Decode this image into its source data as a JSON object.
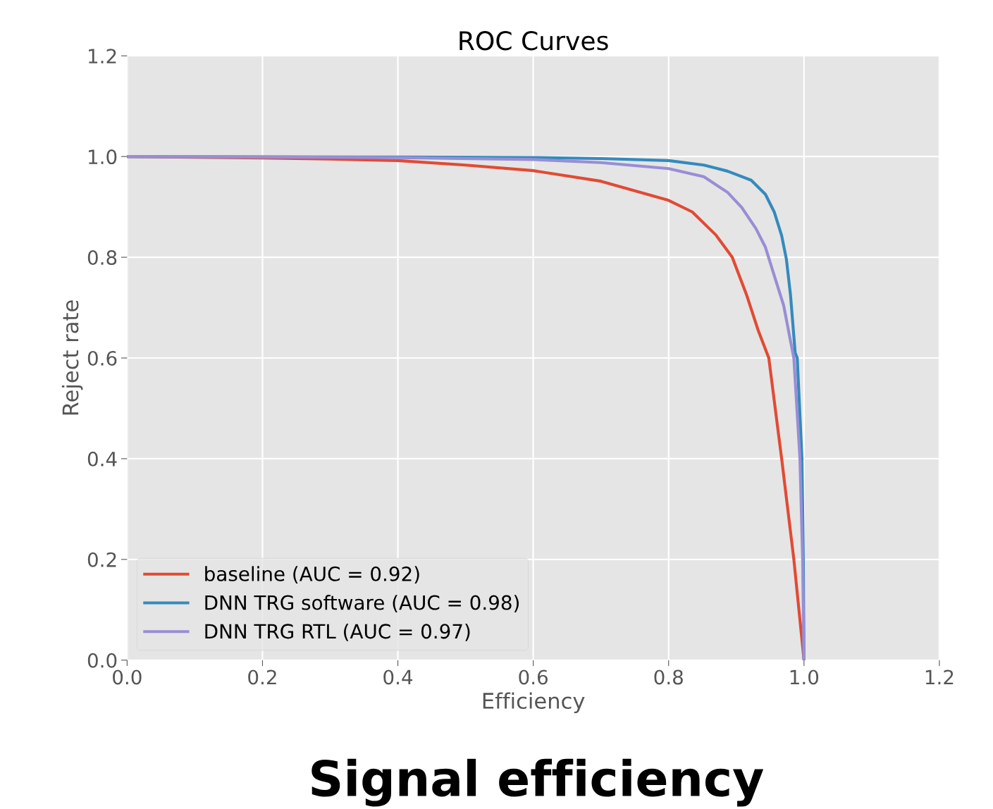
{
  "chart_data": {
    "type": "line",
    "title": "ROC Curves",
    "xlabel": "Efficiency",
    "ylabel": "Reject rate",
    "xlim": [
      0,
      1.2
    ],
    "ylim": [
      0,
      1.2
    ],
    "xticks": [
      {
        "value": 0,
        "label": "0.0"
      },
      0.2,
      0.4,
      0.6,
      0.8,
      {
        "value": 1,
        "label": "1.0"
      },
      1.2
    ],
    "yticks": [
      {
        "value": 0,
        "label": "0.0"
      },
      0.2,
      0.4,
      0.6,
      0.8,
      {
        "value": 1,
        "label": "1.0"
      },
      1.2
    ],
    "grid": true,
    "legend": "bottom left",
    "marker": "none",
    "line_style": "solid",
    "annotations": [
      "Signal efficiency"
    ],
    "series": [
      {
        "name": "baseline (AUC = 0.92)",
        "color": "#e24a33",
        "x": [
          0,
          0.2,
          0.3,
          0.4,
          0.5,
          0.6,
          0.7,
          0.8,
          0.835,
          0.87,
          0.894,
          0.915,
          0.932,
          0.948,
          0.967,
          0.985,
          1.0
        ],
        "values": [
          1.0,
          0.997,
          0.995,
          0.992,
          0.983,
          0.972,
          0.951,
          0.913,
          0.89,
          0.844,
          0.8,
          0.726,
          0.656,
          0.6,
          0.4,
          0.2,
          0
        ]
      },
      {
        "name": "DNN TRG software (AUC = 0.98)",
        "color": "#348abd",
        "x": [
          0,
          0.4,
          0.6,
          0.7,
          0.8,
          0.852,
          0.887,
          0.922,
          0.943,
          0.956,
          0.967,
          0.974,
          0.98,
          0.987,
          0.99,
          0.997,
          0.999,
          1.0
        ],
        "values": [
          1.0,
          0.999,
          0.998,
          0.996,
          0.992,
          0.983,
          0.971,
          0.953,
          0.925,
          0.89,
          0.843,
          0.796,
          0.726,
          0.61,
          0.6,
          0.4,
          0.2,
          0
        ]
      },
      {
        "name": "DNN TRG RTL (AUC = 0.97)",
        "color": "#988ed5",
        "x": [
          0,
          0.2,
          0.4,
          0.6,
          0.7,
          0.8,
          0.852,
          0.887,
          0.908,
          0.929,
          0.943,
          0.956,
          0.97,
          0.98,
          0.985,
          0.994,
          0.998,
          1.0
        ],
        "values": [
          1.0,
          0.999,
          0.998,
          0.994,
          0.988,
          0.976,
          0.96,
          0.929,
          0.899,
          0.857,
          0.82,
          0.764,
          0.704,
          0.634,
          0.6,
          0.4,
          0.2,
          0
        ]
      }
    ]
  }
}
